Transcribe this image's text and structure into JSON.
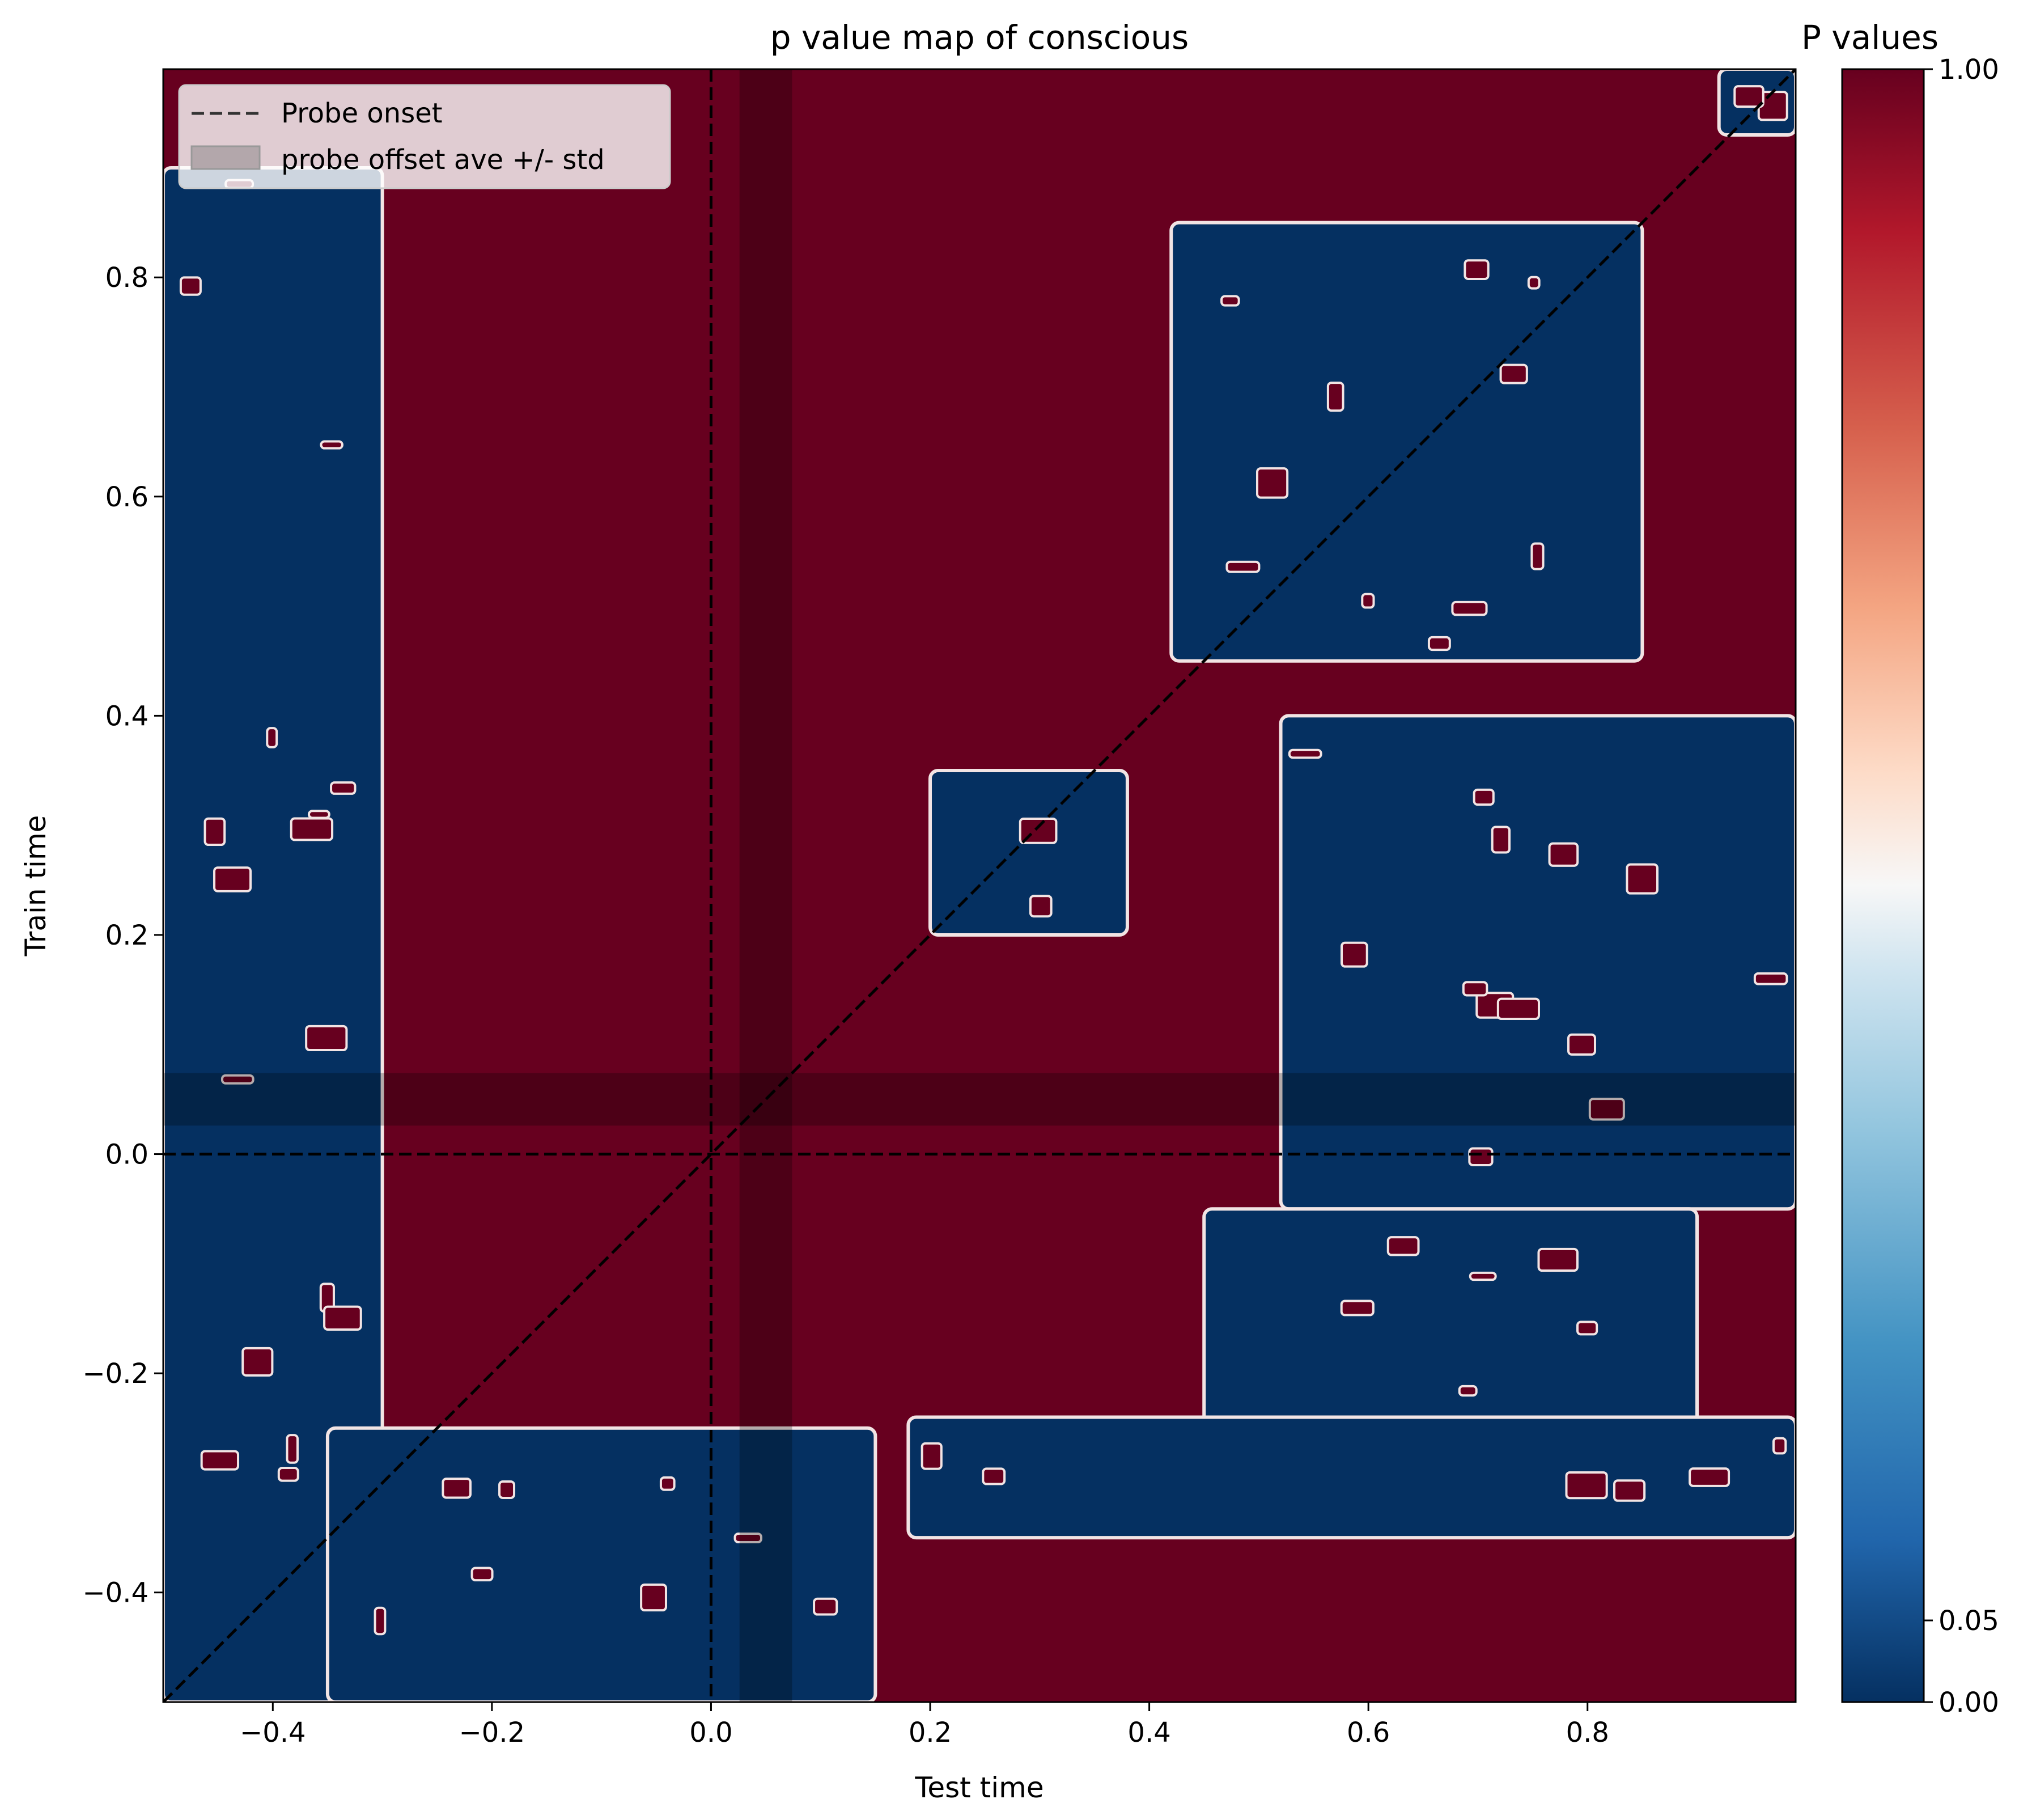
{
  "chart_data": {
    "type": "heatmap",
    "title": "p value map of conscious",
    "xlabel": "Test time",
    "ylabel": "Train time",
    "xlim": [
      -0.5,
      0.99
    ],
    "ylim": [
      -0.5,
      0.99
    ],
    "xticks": [
      -0.4,
      -0.2,
      0.0,
      0.2,
      0.4,
      0.6,
      0.8
    ],
    "yticks": [
      -0.4,
      -0.2,
      0.0,
      0.2,
      0.4,
      0.6,
      0.8
    ],
    "xtick_labels": [
      "−0.4",
      "−0.2",
      "0.0",
      "0.2",
      "0.4",
      "0.6",
      "0.8"
    ],
    "ytick_labels": [
      "−0.4",
      "−0.2",
      "0.0",
      "0.2",
      "0.4",
      "0.6",
      "0.8"
    ],
    "colormap": "RdBu_r",
    "colorbar": {
      "title": "P values",
      "range": [
        0.0,
        1.0
      ],
      "ticks": [
        0.0,
        0.05,
        1.0
      ],
      "tick_labels": [
        "0.00",
        "0.05",
        "1.00"
      ]
    },
    "background_p_value": 1.0,
    "significant_p_value": 0.0,
    "probe_onset": 0.0,
    "probe_offset_mean": 0.05,
    "probe_offset_std": 0.024,
    "diagonal": true,
    "legend": {
      "position": "upper-left",
      "entries": [
        {
          "label": "Probe onset",
          "style": "dashed-line"
        },
        {
          "label": "probe offset ave +/- std",
          "style": "gray-patch"
        }
      ]
    },
    "significant_regions": [
      {
        "name": "left-column",
        "x": [
          -0.5,
          -0.3
        ],
        "y": [
          -0.5,
          0.9
        ]
      },
      {
        "name": "early-diagonal-cluster",
        "x": [
          -0.35,
          0.15
        ],
        "y": [
          -0.5,
          -0.25
        ]
      },
      {
        "name": "small-cluster",
        "x": [
          0.2,
          0.38
        ],
        "y": [
          0.2,
          0.35
        ]
      },
      {
        "name": "late-upper-cluster",
        "x": [
          0.42,
          0.85
        ],
        "y": [
          0.45,
          0.85
        ]
      },
      {
        "name": "late-right-cluster",
        "x": [
          0.52,
          0.99
        ],
        "y": [
          -0.05,
          0.4
        ]
      },
      {
        "name": "late-lower-cluster",
        "x": [
          0.45,
          0.9
        ],
        "y": [
          -0.25,
          -0.05
        ]
      },
      {
        "name": "bottom-right-strip",
        "x": [
          0.18,
          0.99
        ],
        "y": [
          -0.35,
          -0.24
        ]
      },
      {
        "name": "upper-right-corner",
        "x": [
          0.92,
          0.99
        ],
        "y": [
          0.93,
          0.99
        ]
      }
    ]
  }
}
